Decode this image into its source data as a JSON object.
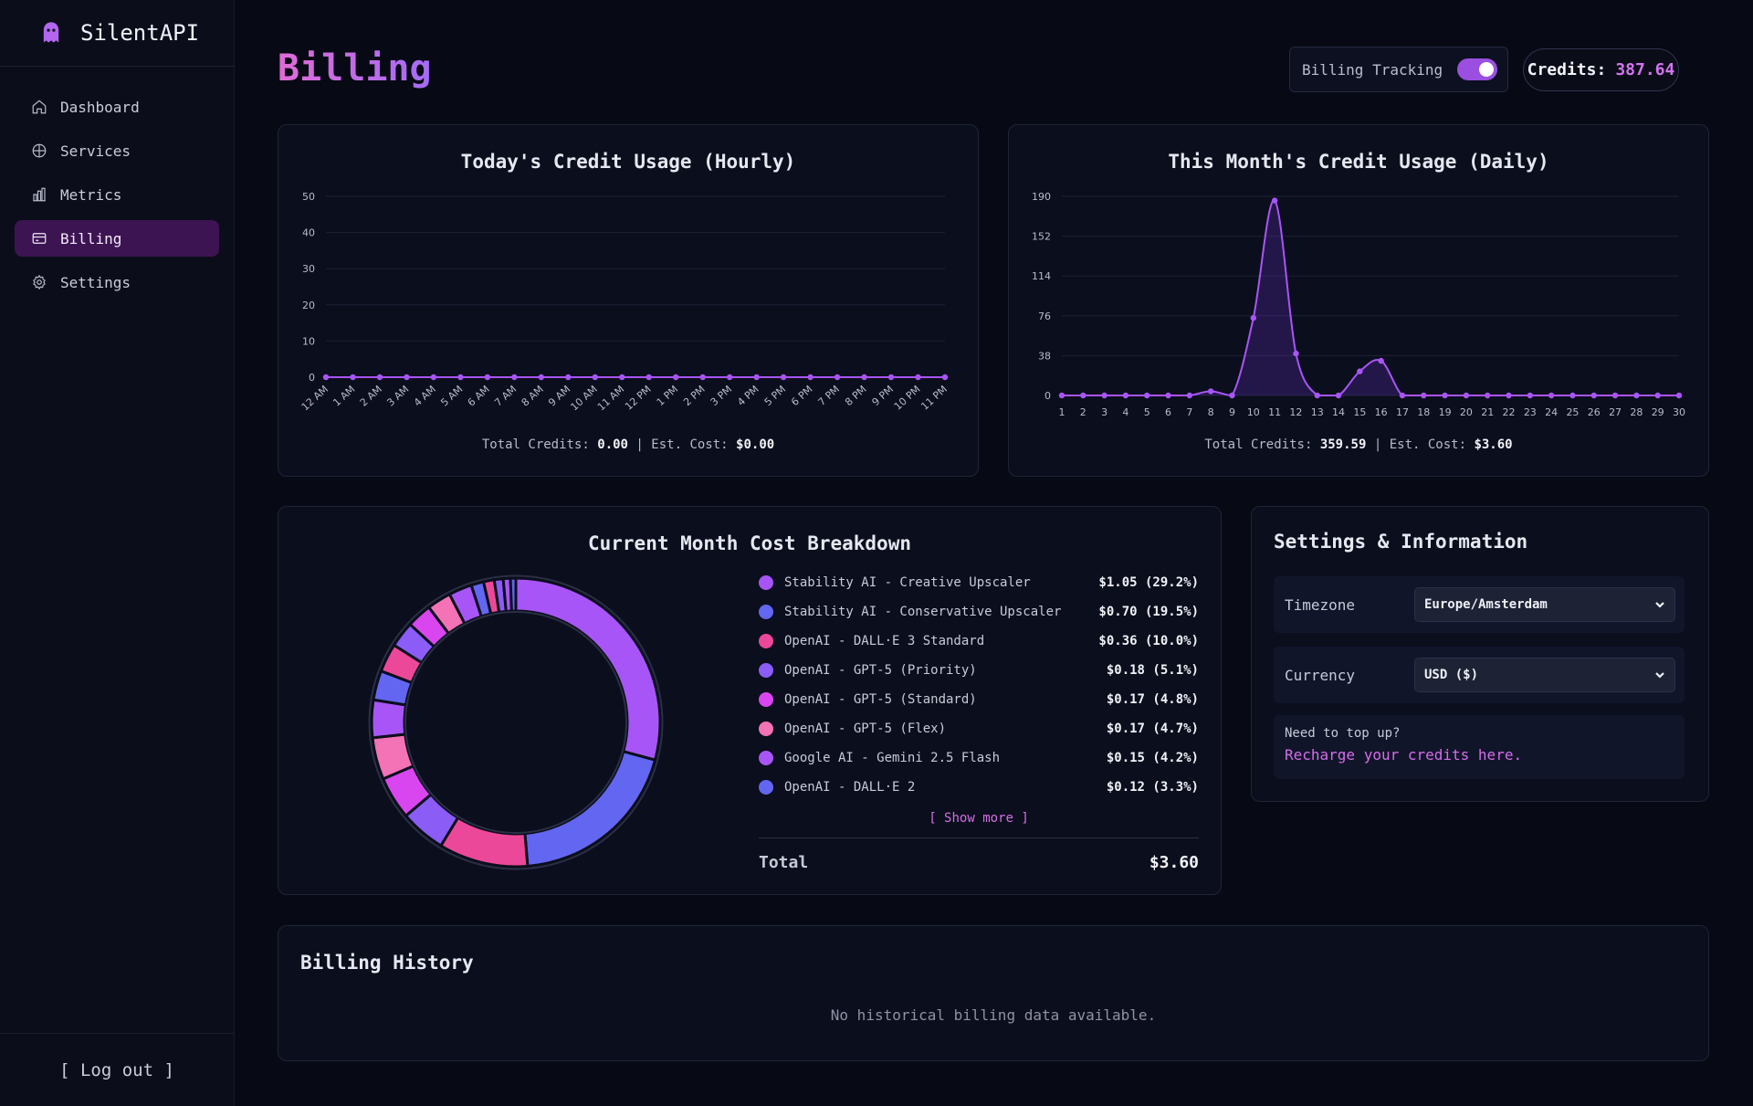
{
  "app": {
    "name": "SilentAPI"
  },
  "sidebar": {
    "items": [
      {
        "label": "Dashboard",
        "icon": "home-icon",
        "active": false
      },
      {
        "label": "Services",
        "icon": "globe-icon",
        "active": false
      },
      {
        "label": "Metrics",
        "icon": "bar-chart-icon",
        "active": false
      },
      {
        "label": "Billing",
        "icon": "credit-card-icon",
        "active": true
      },
      {
        "label": "Settings",
        "icon": "gear-icon",
        "active": false
      }
    ],
    "logout_label": "[ Log out ]"
  },
  "header": {
    "title": "Billing",
    "tracking_label": "Billing Tracking",
    "tracking_enabled": true,
    "credits_label": "Credits:",
    "credits_value": "387.64"
  },
  "hourly": {
    "title": "Today's Credit Usage (Hourly)",
    "footer_credits_label": "Total Credits:",
    "footer_credits": "0.00",
    "footer_sep": "|",
    "footer_cost_label": "Est. Cost:",
    "footer_cost": "$0.00"
  },
  "daily": {
    "title": "This Month's Credit Usage (Daily)",
    "footer_credits_label": "Total Credits:",
    "footer_credits": "359.59",
    "footer_sep": "|",
    "footer_cost_label": "Est. Cost:",
    "footer_cost": "$3.60"
  },
  "breakdown": {
    "title": "Current Month Cost Breakdown",
    "show_more": "[ Show more ]",
    "total_label": "Total",
    "total_value": "$3.60"
  },
  "settings_panel": {
    "title": "Settings & Information",
    "timezone_label": "Timezone",
    "timezone_value": "Europe/Amsterdam",
    "currency_label": "Currency",
    "currency_value": "USD ($)",
    "topup_question": "Need to top up?",
    "topup_link": "Recharge your credits here."
  },
  "history": {
    "title": "Billing History",
    "empty": "No historical billing data available."
  },
  "colors": {
    "accent": "#a855f7",
    "pink": "#ec4899",
    "blue": "#6366f1",
    "magenta": "#d946ef"
  },
  "chart_data": [
    {
      "type": "line",
      "title": "Today's Credit Usage (Hourly)",
      "x": [
        "12 AM",
        "1 AM",
        "2 AM",
        "3 AM",
        "4 AM",
        "5 AM",
        "6 AM",
        "7 AM",
        "8 AM",
        "9 AM",
        "10 AM",
        "11 AM",
        "12 PM",
        "1 PM",
        "2 PM",
        "3 PM",
        "4 PM",
        "5 PM",
        "6 PM",
        "7 PM",
        "8 PM",
        "9 PM",
        "10 PM",
        "11 PM"
      ],
      "values": [
        0,
        0,
        0,
        0,
        0,
        0,
        0,
        0,
        0,
        0,
        0,
        0,
        0,
        0,
        0,
        0,
        0,
        0,
        0,
        0,
        0,
        0,
        0,
        0
      ],
      "yticks": [
        0,
        10,
        20,
        30,
        40,
        50
      ],
      "ylim": [
        0,
        50
      ],
      "grid": true
    },
    {
      "type": "area",
      "title": "This Month's Credit Usage (Daily)",
      "x": [
        "1",
        "2",
        "3",
        "4",
        "5",
        "6",
        "7",
        "8",
        "9",
        "10",
        "11",
        "12",
        "13",
        "14",
        "15",
        "16",
        "17",
        "18",
        "19",
        "20",
        "21",
        "22",
        "23",
        "24",
        "25",
        "26",
        "27",
        "28",
        "29",
        "30"
      ],
      "values": [
        0,
        0,
        0,
        0,
        0,
        0,
        0,
        4,
        0,
        74,
        186,
        40,
        0,
        0,
        23,
        33,
        0,
        0,
        0,
        0,
        0,
        0,
        0,
        0,
        0,
        0,
        0,
        0,
        0,
        0
      ],
      "yticks": [
        0,
        38,
        76,
        114,
        152,
        190
      ],
      "ylim": [
        0,
        190
      ],
      "grid": true
    },
    {
      "type": "pie",
      "title": "Current Month Cost Breakdown",
      "legend": "right",
      "slices": [
        {
          "label": "Stability AI - Creative Upscaler",
          "value": "$1.05 (29.2%)",
          "pct": 29.2,
          "color": "#a855f7"
        },
        {
          "label": "Stability AI - Conservative Upscaler",
          "value": "$0.70 (19.5%)",
          "pct": 19.5,
          "color": "#6366f1"
        },
        {
          "label": "OpenAI - DALL·E 3 Standard",
          "value": "$0.36 (10.0%)",
          "pct": 10.0,
          "color": "#ec4899"
        },
        {
          "label": "OpenAI - GPT-5 (Priority)",
          "value": "$0.18 (5.1%)",
          "pct": 5.1,
          "color": "#8b5cf6"
        },
        {
          "label": "OpenAI - GPT-5 (Standard)",
          "value": "$0.17 (4.8%)",
          "pct": 4.8,
          "color": "#d946ef"
        },
        {
          "label": "OpenAI - GPT-5 (Flex)",
          "value": "$0.17 (4.7%)",
          "pct": 4.7,
          "color": "#f472b6"
        },
        {
          "label": "Google AI - Gemini 2.5 Flash",
          "value": "$0.15 (4.2%)",
          "pct": 4.2,
          "color": "#a855f7"
        },
        {
          "label": "OpenAI - DALL·E 2",
          "value": "$0.12 (3.3%)",
          "pct": 3.3,
          "color": "#6366f1"
        }
      ],
      "other_slices": [
        {
          "pct": 3.2,
          "color": "#ec4899"
        },
        {
          "pct": 2.9,
          "color": "#8b5cf6"
        },
        {
          "pct": 2.8,
          "color": "#d946ef"
        },
        {
          "pct": 2.7,
          "color": "#f472b6"
        },
        {
          "pct": 2.6,
          "color": "#a855f7"
        },
        {
          "pct": 1.4,
          "color": "#6366f1"
        },
        {
          "pct": 1.2,
          "color": "#ec4899"
        },
        {
          "pct": 1.0,
          "color": "#8b5cf6"
        },
        {
          "pct": 0.8,
          "color": "#a855f7"
        },
        {
          "pct": 0.6,
          "color": "#6366f1"
        }
      ]
    }
  ]
}
